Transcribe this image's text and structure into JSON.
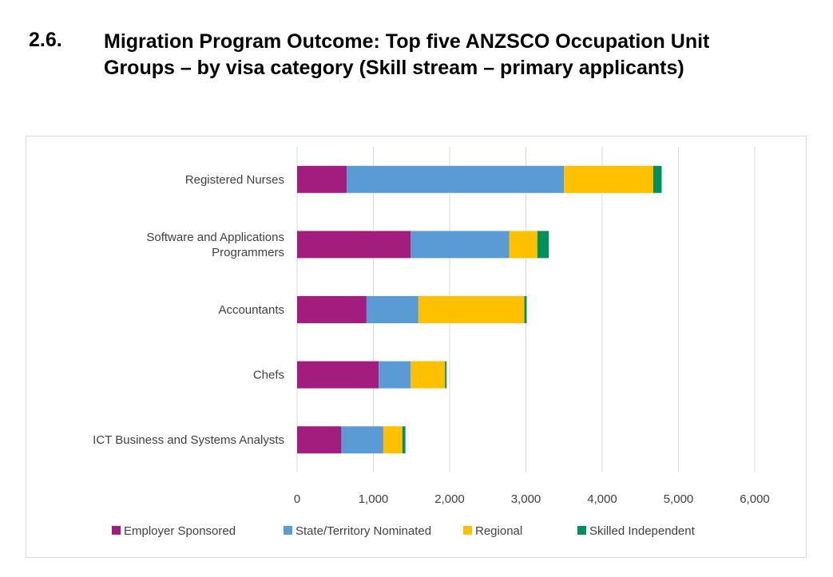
{
  "heading": {
    "number": "2.6.",
    "title": "Migration Program Outcome: Top five ANZSCO Occupation Unit Groups – by visa category (Skill stream – primary applicants)"
  },
  "chart_data": {
    "type": "bar",
    "orientation": "horizontal",
    "stacked": true,
    "categories": [
      [
        "Registered Nurses"
      ],
      [
        "Software and Applications",
        "Programmers"
      ],
      [
        "Accountants"
      ],
      [
        "Chefs"
      ],
      [
        "ICT Business and Systems Analysts"
      ]
    ],
    "series": [
      {
        "name": "Employer Sponsored",
        "color": "#a21d7e",
        "values": [
          650,
          1490,
          910,
          1070,
          580
        ]
      },
      {
        "name": "State/Territory Nominated",
        "color": "#5b9bd5",
        "values": [
          2850,
          1290,
          680,
          420,
          550
        ]
      },
      {
        "name": "Regional",
        "color": "#ffc000",
        "values": [
          1170,
          370,
          1390,
          450,
          250
        ]
      },
      {
        "name": "Skilled Independent",
        "color": "#008f5d",
        "values": [
          110,
          150,
          30,
          20,
          40
        ]
      }
    ],
    "xlim": [
      0,
      6000
    ],
    "xticks": [
      0,
      1000,
      2000,
      3000,
      4000,
      5000,
      6000
    ],
    "xtick_labels": [
      "0",
      "1,000",
      "2,000",
      "3,000",
      "4,000",
      "5,000",
      "6,000"
    ],
    "grid": true,
    "legend_position": "bottom"
  }
}
